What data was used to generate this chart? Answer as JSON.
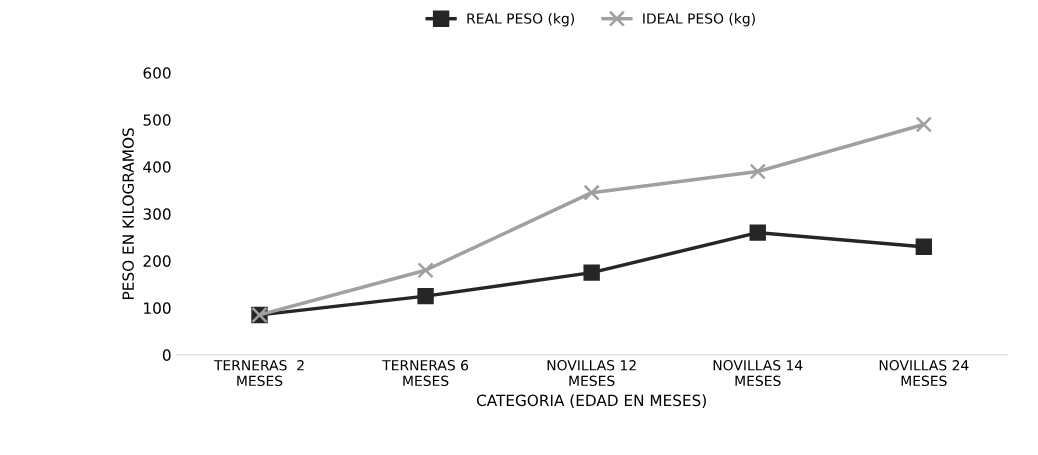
{
  "chart_data": {
    "type": "line",
    "xlabel": "CATEGORIA (EDAD EN MESES)",
    "ylabel": "PESO EN KILOGRAMOS",
    "categories": [
      "TERNERAS  2\nMESES",
      "TERNERAS 6\nMESES",
      "NOVILLAS 12\nMESES",
      "NOVILLAS 14\nMESES",
      "NOVILLAS 24\nMESES"
    ],
    "series": [
      {
        "name": "REAL PESO (kg)",
        "color": "#262626",
        "marker": "square",
        "values": [
          85,
          125,
          175,
          260,
          230
        ]
      },
      {
        "name": "IDEAL PESO (kg)",
        "color": "#a0a0a0",
        "marker": "cross",
        "values": [
          85,
          180,
          345,
          390,
          490
        ]
      }
    ],
    "ylim": [
      0,
      600
    ],
    "yticks": [
      0,
      100,
      200,
      300,
      400,
      500,
      600
    ],
    "grid": false,
    "legend": "top"
  }
}
